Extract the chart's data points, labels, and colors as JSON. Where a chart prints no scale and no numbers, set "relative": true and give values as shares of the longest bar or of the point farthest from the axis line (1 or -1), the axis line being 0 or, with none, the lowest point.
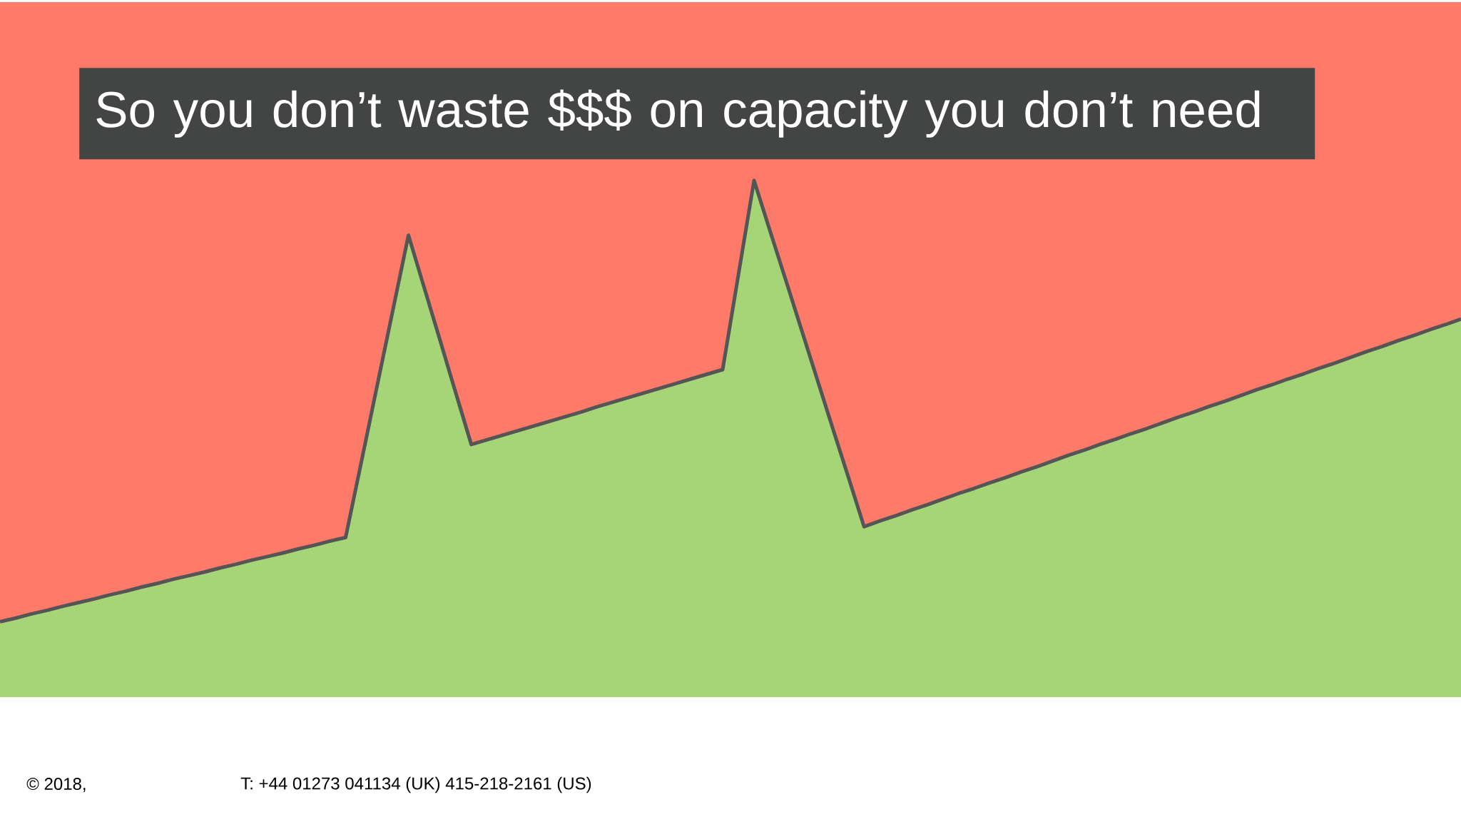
{
  "chart_data": {
    "type": "area",
    "title": "So you don’t waste $$$ on capacity you don’t need",
    "relative": true,
    "tick_labels": false,
    "line_style": "solid",
    "categories": [
      null,
      null,
      null,
      null,
      null,
      null,
      null,
      null,
      null,
      null,
      null,
      null,
      null,
      null,
      null,
      null,
      null,
      null,
      null,
      null,
      null,
      null,
      null,
      null,
      null,
      null,
      null,
      null,
      null,
      null,
      null,
      null,
      null,
      null,
      null,
      null,
      null,
      null,
      null,
      null,
      null,
      null,
      null,
      null,
      null,
      null,
      null,
      null,
      null,
      null,
      null,
      null,
      null,
      null,
      null,
      null,
      null,
      null,
      null,
      null,
      null,
      null,
      null,
      null,
      null,
      null,
      null,
      null,
      null,
      null,
      null,
      null,
      null,
      null,
      null,
      null,
      null,
      null,
      null,
      null,
      null,
      null,
      null,
      null,
      null,
      null,
      null,
      null,
      null,
      null,
      null,
      null,
      null,
      null
    ],
    "series": [
      {
        "color": "#a6d578",
        "values": [
          0.146,
          0.153,
          0.161,
          0.168,
          0.176,
          0.183,
          0.19,
          0.198,
          0.205,
          0.213,
          0.22,
          0.228,
          0.235,
          0.242,
          0.25,
          0.257,
          0.265,
          0.272,
          0.279,
          0.287,
          0.294,
          0.302,
          0.309,
          0.455,
          0.602,
          0.748,
          0.894,
          0.793,
          0.692,
          0.59,
          0.489,
          0.498,
          0.507,
          0.516,
          0.525,
          0.534,
          0.543,
          0.552,
          0.562,
          0.571,
          0.58,
          0.589,
          0.598,
          0.607,
          0.616,
          0.625,
          0.634,
          0.817,
          1,
          0.904,
          0.809,
          0.713,
          0.617,
          0.521,
          0.426,
          0.33,
          0.341,
          0.351,
          0.362,
          0.372,
          0.383,
          0.394,
          0.404,
          0.415,
          0.425,
          0.436,
          0.446,
          0.457,
          0.468,
          0.478,
          0.489,
          0.499,
          0.51,
          0.52,
          0.531,
          0.542,
          0.552,
          0.563,
          0.573,
          0.584,
          0.595,
          0.605,
          0.616,
          0.626,
          0.637,
          0.647,
          0.658,
          0.669,
          0.679,
          0.69,
          0.7,
          0.711,
          0.721,
          0.732
        ]
      }
    ],
    "annotations": [
      "© 2018,",
      "T: +44 01273 041134 (UK) 415-218-2161 (US)"
    ]
  }
}
